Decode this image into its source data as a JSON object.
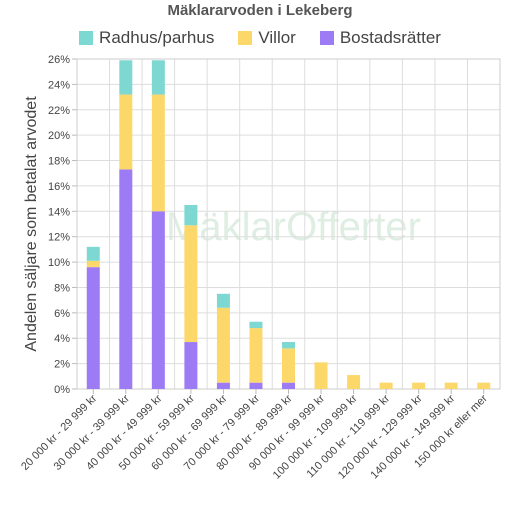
{
  "chart_data": {
    "type": "bar",
    "stacked": true,
    "title": "Mäklararvoden i Lekeberg",
    "ylabel": "Andelen säljare som betalat arvodet",
    "xlabel": "",
    "ylim": [
      0,
      26
    ],
    "yticks": [
      "0%",
      "2%",
      "4%",
      "6%",
      "8%",
      "10%",
      "12%",
      "14%",
      "16%",
      "18%",
      "20%",
      "22%",
      "24%",
      "26%"
    ],
    "grid": true,
    "legend_position": "top",
    "categories": [
      "20 000 kr - 29 999 kr",
      "30 000 kr - 39 999 kr",
      "40 000 kr - 49 999 kr",
      "50 000 kr - 59 999 kr",
      "60 000 kr - 69 999 kr",
      "70 000 kr - 79 999 kr",
      "80 000 kr - 89 999 kr",
      "90 000 kr - 99 999 kr",
      "100 000 kr - 109 999 kr",
      "110 000 kr - 119 999 kr",
      "120 000 kr - 129 999 kr",
      "140 000 kr - 149 999 kr",
      "150 000 kr eller mer"
    ],
    "series": [
      {
        "name": "Bostadsrätter",
        "color": "#9d7bf5",
        "values": [
          9.6,
          17.3,
          14.0,
          3.7,
          0.5,
          0.5,
          0.5,
          0,
          0,
          0,
          0,
          0,
          0
        ]
      },
      {
        "name": "Villor",
        "color": "#fcd86b",
        "values": [
          0.5,
          5.9,
          9.2,
          9.2,
          5.9,
          4.3,
          2.7,
          2.1,
          1.1,
          0.5,
          0.5,
          0.5,
          0.5
        ]
      },
      {
        "name": "Radhus/parhus",
        "color": "#7dd8d2",
        "values": [
          1.1,
          2.7,
          2.7,
          1.6,
          1.1,
          0.5,
          0.5,
          0,
          0,
          0,
          0,
          0,
          0
        ]
      }
    ],
    "legend_order": [
      "Radhus/parhus",
      "Villor",
      "Bostadsrätter"
    ],
    "watermark": "MäklarOfferter"
  }
}
